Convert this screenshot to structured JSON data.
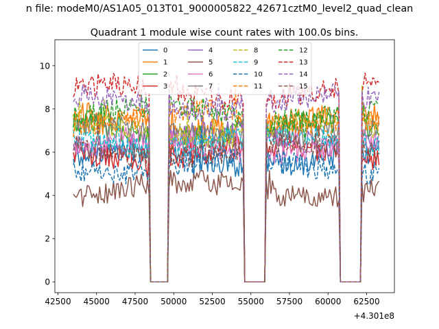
{
  "suptitle": "n file: modeM0/AS1A05_013T01_9000005822_42671cztM0_level2_quad_clean",
  "chart_data": {
    "type": "line",
    "title": "Quadrant 1 module wise count rates with 100.0s bins.",
    "xlabel": "",
    "ylabel": "",
    "x_offset_label": "+4.301e8",
    "xlim": [
      42300,
      64300
    ],
    "ylim": [
      -0.5,
      11.2
    ],
    "x_ticks": [
      42500,
      45000,
      47500,
      50000,
      52500,
      55000,
      57500,
      60000,
      62500
    ],
    "x_tick_labels": [
      "42500",
      "45000",
      "47500",
      "50000",
      "52500",
      "55000",
      "57500",
      "60000",
      "62500"
    ],
    "y_ticks": [
      0,
      2,
      4,
      6,
      8,
      10
    ],
    "y_tick_labels": [
      "0",
      "2",
      "4",
      "6",
      "8",
      "10"
    ],
    "bin_size_s": 100,
    "segments": [
      [
        43500,
        48400
      ],
      [
        49700,
        54500
      ],
      [
        56000,
        60700
      ],
      [
        62200,
        63300
      ]
    ],
    "gaps": [
      [
        48400,
        49700
      ],
      [
        54500,
        56000
      ],
      [
        60700,
        62200
      ]
    ],
    "legend": {
      "location": "upper-center",
      "columns": 4
    },
    "series": [
      {
        "name": "0",
        "color": "#1f77b4",
        "dash": "solid",
        "mean": 5.7
      },
      {
        "name": "1",
        "color": "#ff7f0e",
        "dash": "solid",
        "mean": 7.4
      },
      {
        "name": "2",
        "color": "#2ca02c",
        "dash": "solid",
        "mean": 7.0
      },
      {
        "name": "3",
        "color": "#d62728",
        "dash": "solid",
        "mean": 6.0
      },
      {
        "name": "4",
        "color": "#9467bd",
        "dash": "solid",
        "mean": 6.6
      },
      {
        "name": "5",
        "color": "#8c564b",
        "dash": "solid",
        "mean": 4.3
      },
      {
        "name": "6",
        "color": "#e377c2",
        "dash": "solid",
        "mean": 6.3
      },
      {
        "name": "7",
        "color": "#7f7f7f",
        "dash": "solid",
        "mean": 6.9
      },
      {
        "name": "8",
        "color": "#bcbd22",
        "dash": "dashed",
        "mean": 7.1
      },
      {
        "name": "9",
        "color": "#17becf",
        "dash": "dashed",
        "mean": 6.5
      },
      {
        "name": "10",
        "color": "#1f77b4",
        "dash": "dashed",
        "mean": 5.4
      },
      {
        "name": "11",
        "color": "#ff7f0e",
        "dash": "dashed",
        "mean": 7.6
      },
      {
        "name": "12",
        "color": "#2ca02c",
        "dash": "dashed",
        "mean": 7.8
      },
      {
        "name": "13",
        "color": "#d62728",
        "dash": "dashed",
        "mean": 8.8
      },
      {
        "name": "14",
        "color": "#9467bd",
        "dash": "dashed",
        "mean": 8.3
      },
      {
        "name": "15",
        "color": "#8c564b",
        "dash": "dashed",
        "mean": 6.1
      }
    ]
  }
}
